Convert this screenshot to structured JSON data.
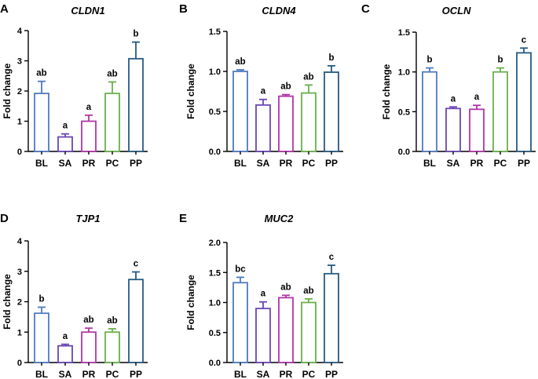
{
  "chart_data": [
    {
      "panel": "A",
      "type": "bar",
      "title": "CLDN1",
      "ylabel": "Fold change",
      "categories": [
        "BL",
        "SA",
        "PR",
        "PC",
        "PP"
      ],
      "values": [
        1.92,
        0.48,
        1.0,
        1.92,
        3.07
      ],
      "errors": [
        0.4,
        0.1,
        0.2,
        0.38,
        0.55
      ],
      "significance": [
        "ab",
        "a",
        "a",
        "ab",
        "b"
      ],
      "ylim": [
        0,
        4
      ],
      "yticks": [
        "0",
        "1",
        "2",
        "3",
        "4"
      ]
    },
    {
      "panel": "B",
      "type": "bar",
      "title": "CLDN4",
      "ylabel": "Fold change",
      "categories": [
        "BL",
        "SA",
        "PR",
        "PC",
        "PP"
      ],
      "values": [
        1.0,
        0.58,
        0.69,
        0.73,
        0.99
      ],
      "errors": [
        0.02,
        0.07,
        0.02,
        0.1,
        0.08
      ],
      "significance": [
        "ab",
        "a",
        "ab",
        "ab",
        "b"
      ],
      "ylim": [
        0,
        1.5
      ],
      "yticks": [
        "0.0",
        "0.5",
        "1.0",
        "1.5"
      ]
    },
    {
      "panel": "C",
      "type": "bar",
      "title": "OCLN",
      "ylabel": "Fold change",
      "categories": [
        "BL",
        "SA",
        "PR",
        "PC",
        "PP"
      ],
      "values": [
        1.0,
        0.54,
        0.53,
        1.0,
        1.24
      ],
      "errors": [
        0.05,
        0.02,
        0.05,
        0.05,
        0.06
      ],
      "significance": [
        "b",
        "a",
        "a",
        "b",
        "c"
      ],
      "ylim": [
        0,
        1.5
      ],
      "yticks": [
        "0.0",
        "0.5",
        "1.0",
        "1.5"
      ]
    },
    {
      "panel": "D",
      "type": "bar",
      "title": "TJP1",
      "ylabel": "Fold change",
      "categories": [
        "BL",
        "SA",
        "PR",
        "PC",
        "PP"
      ],
      "values": [
        1.62,
        0.55,
        1.0,
        1.0,
        2.73
      ],
      "errors": [
        0.2,
        0.05,
        0.13,
        0.11,
        0.25
      ],
      "significance": [
        "b",
        "a",
        "ab",
        "ab",
        "c"
      ],
      "ylim": [
        0,
        4
      ],
      "yticks": [
        "0",
        "1",
        "2",
        "3",
        "4"
      ]
    },
    {
      "panel": "E",
      "type": "bar",
      "title": "MUC2",
      "ylabel": "Fold change",
      "categories": [
        "BL",
        "SA",
        "PR",
        "PC",
        "PP"
      ],
      "values": [
        1.33,
        0.9,
        1.08,
        1.0,
        1.48
      ],
      "errors": [
        0.09,
        0.11,
        0.04,
        0.06,
        0.14
      ],
      "significance": [
        "bc",
        "a",
        "ab",
        "ab",
        "c"
      ],
      "ylim": [
        0,
        2.0
      ],
      "yticks": [
        "0.0",
        "0.5",
        "1.0",
        "1.5",
        "2.0"
      ]
    }
  ],
  "colors": {
    "BL": "#4f7ac0",
    "SA": "#6a45b5",
    "PR": "#b035a8",
    "PC": "#6ab04c",
    "PP": "#265a82",
    "axis": "#000000"
  }
}
